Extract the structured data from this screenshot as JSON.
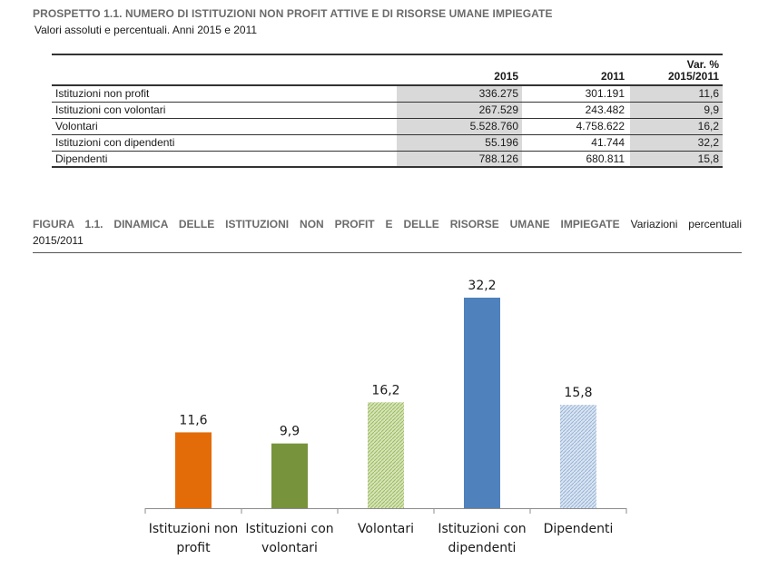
{
  "prospetto": {
    "title": "PROSPETTO 1.1. NUMERO DI ISTITUZIONI NON PROFIT ATTIVE E DI RISORSE UMANE IMPIEGATE",
    "subtitle": "Valori assoluti e percentuali. Anni 2015 e 2011",
    "headers": {
      "y2015": "2015",
      "y2011": "2011",
      "var_line1": "Var. %",
      "var_line2": "2015/2011"
    },
    "rows": [
      {
        "label": "Istituzioni non profit",
        "v2015": "336.275",
        "v2011": "301.191",
        "var": "11,6"
      },
      {
        "label": "Istituzioni con volontari",
        "v2015": "267.529",
        "v2011": "243.482",
        "var": "9,9"
      },
      {
        "label": "Volontari",
        "v2015": "5.528.760",
        "v2011": "4.758.622",
        "var": "16,2"
      },
      {
        "label": "Istituzioni con dipendenti",
        "v2015": "55.196",
        "v2011": "41.744",
        "var": "32,2"
      },
      {
        "label": "Dipendenti",
        "v2015": "788.126",
        "v2011": "680.811",
        "var": "15,8"
      }
    ]
  },
  "figura": {
    "title": "FIGURA 1.1. DINAMICA DELLE ISTITUZIONI NON PROFIT E DELLE RISORSE UMANE IMPIEGATE",
    "description": "Variazioni percentuali",
    "description_cont": "2015/2011"
  },
  "chart_data": {
    "type": "bar",
    "title": "",
    "xlabel": "",
    "ylabel": "",
    "ylim": [
      0,
      32.2
    ],
    "grid": false,
    "categories": [
      [
        "Istituzioni non",
        "profit"
      ],
      [
        "Istituzioni con",
        "volontari"
      ],
      [
        "Volontari"
      ],
      [
        "Istituzioni con",
        "dipendenti"
      ],
      [
        "Dipendenti"
      ]
    ],
    "values": [
      11.6,
      9.9,
      16.2,
      32.2,
      15.8
    ],
    "value_labels": [
      "11,6",
      "9,9",
      "16,2",
      "32,2",
      "15,8"
    ],
    "colors": [
      "#e36c09",
      "#77933c",
      "#c3d69b",
      "#4f81bd",
      "#b9cde5"
    ],
    "patterns": [
      "solid",
      "solid",
      "hatched",
      "solid",
      "hatched"
    ]
  }
}
